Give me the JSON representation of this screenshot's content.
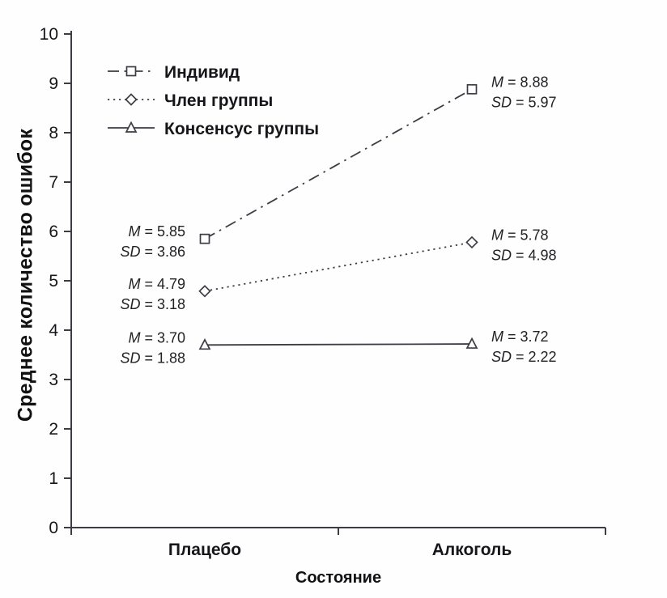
{
  "figure": {
    "stat_labels": {
      "mean": "M",
      "sd": "SD"
    }
  },
  "chart_data": {
    "type": "line",
    "title": "",
    "xlabel": "Состояние",
    "ylabel": "Среднее количество ошибок",
    "ylim": [
      0,
      10
    ],
    "yticks": [
      0,
      1,
      2,
      3,
      4,
      5,
      6,
      7,
      8,
      9,
      10
    ],
    "grid": false,
    "legend_position": "top-left inside plot",
    "categories": [
      "Плацебо",
      "Алкоголь"
    ],
    "axis_color": "#3c3c45",
    "text_color": "#16161a",
    "series": [
      {
        "name": "Индивид",
        "marker": "square",
        "line_style": "dash-dot",
        "color": "#3c3c45",
        "values": [
          5.85,
          8.88
        ],
        "sd": [
          3.86,
          5.97
        ],
        "value_labels": [
          "5.85",
          "8.88"
        ],
        "sd_labels": [
          "3.86",
          "5.97"
        ]
      },
      {
        "name": "Член группы",
        "marker": "diamond",
        "line_style": "dotted",
        "color": "#3c3c45",
        "values": [
          4.79,
          5.78
        ],
        "sd": [
          3.18,
          4.98
        ],
        "value_labels": [
          "4.79",
          "5.78"
        ],
        "sd_labels": [
          "3.18",
          "4.98"
        ]
      },
      {
        "name": "Консенсус группы",
        "marker": "triangle",
        "line_style": "solid",
        "color": "#3c3c45",
        "values": [
          3.7,
          3.72
        ],
        "sd": [
          1.88,
          2.22
        ],
        "value_labels": [
          "3.70",
          "3.72"
        ],
        "sd_labels": [
          "1.88",
          "2.22"
        ]
      }
    ]
  }
}
